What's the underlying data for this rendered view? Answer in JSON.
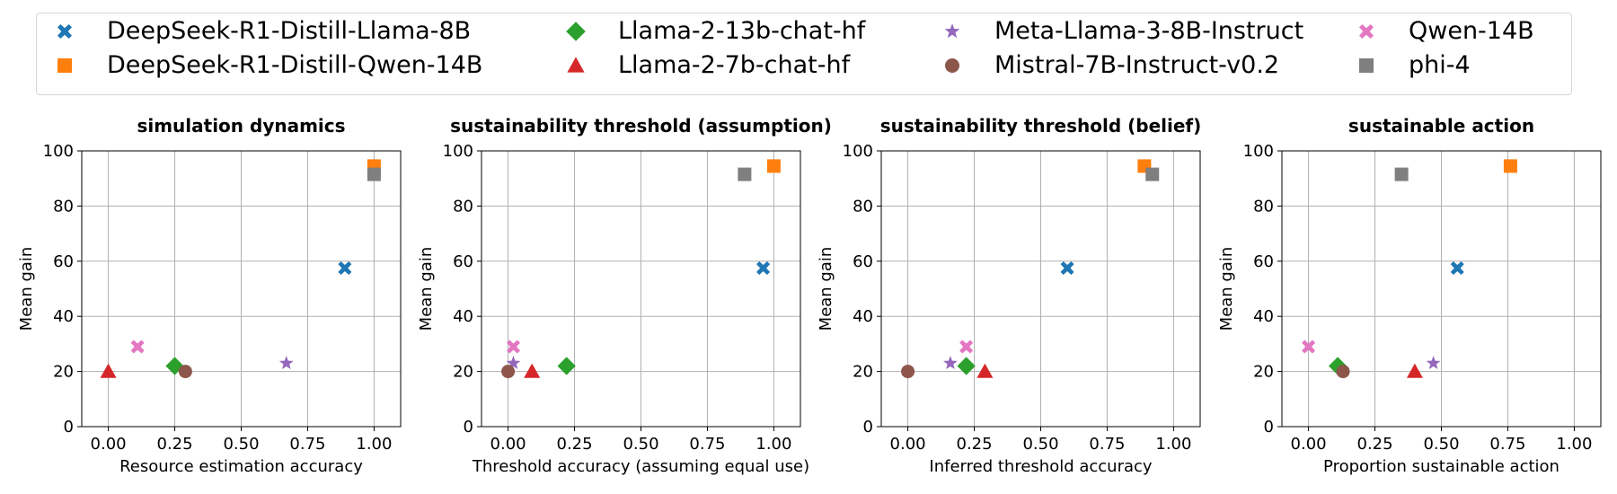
{
  "legend": [
    {
      "key": "ds_llama",
      "label": "DeepSeek-R1-Distill-Llama-8B",
      "marker": "x-cross",
      "color": "#1f77b4"
    },
    {
      "key": "ds_qwen",
      "label": "DeepSeek-R1-Distill-Qwen-14B",
      "marker": "square",
      "color": "#ff7f0e"
    },
    {
      "key": "llama13",
      "label": "Llama-2-13b-chat-hf",
      "marker": "diamond",
      "color": "#2ca02c"
    },
    {
      "key": "llama7",
      "label": "Llama-2-7b-chat-hf",
      "marker": "triangle",
      "color": "#d62728"
    },
    {
      "key": "llama3",
      "label": "Meta-Llama-3-8B-Instruct",
      "marker": "star",
      "color": "#9467bd"
    },
    {
      "key": "mistral",
      "label": "Mistral-7B-Instruct-v0.2",
      "marker": "circle",
      "color": "#8c564b"
    },
    {
      "key": "qwen14",
      "label": "Qwen-14B",
      "marker": "x-cross",
      "color": "#e377c2"
    },
    {
      "key": "phi4",
      "label": "phi-4",
      "marker": "square",
      "color": "#7f7f7f"
    }
  ],
  "chart_data": [
    {
      "type": "scatter",
      "title": "simulation dynamics",
      "xlabel": "Resource estimation accuracy",
      "ylabel": "Mean gain",
      "xlim": [
        -0.1,
        1.1
      ],
      "ylim": [
        0,
        100
      ],
      "xticks": [
        "0.00",
        "0.25",
        "0.50",
        "0.75",
        "1.00"
      ],
      "yticks": [
        "0",
        "20",
        "40",
        "60",
        "80",
        "100"
      ],
      "grid": true,
      "points": [
        {
          "series": "ds_llama",
          "x": 0.89,
          "y": 57.5
        },
        {
          "series": "ds_qwen",
          "x": 1.0,
          "y": 94.5
        },
        {
          "series": "llama13",
          "x": 0.25,
          "y": 22
        },
        {
          "series": "llama7",
          "x": 0.0,
          "y": 20
        },
        {
          "series": "llama3",
          "x": 0.67,
          "y": 23
        },
        {
          "series": "mistral",
          "x": 0.29,
          "y": 20
        },
        {
          "series": "qwen14",
          "x": 0.11,
          "y": 29
        },
        {
          "series": "phi4",
          "x": 1.0,
          "y": 91.5
        }
      ]
    },
    {
      "type": "scatter",
      "title": "sustainability threshold (assumption)",
      "xlabel": "Threshold accuracy (assuming equal use)",
      "ylabel": "Mean gain",
      "xlim": [
        -0.1,
        1.1
      ],
      "ylim": [
        0,
        100
      ],
      "xticks": [
        "0.00",
        "0.25",
        "0.50",
        "0.75",
        "1.00"
      ],
      "yticks": [
        "0",
        "20",
        "40",
        "60",
        "80",
        "100"
      ],
      "grid": true,
      "points": [
        {
          "series": "ds_llama",
          "x": 0.96,
          "y": 57.5
        },
        {
          "series": "ds_qwen",
          "x": 1.0,
          "y": 94.5
        },
        {
          "series": "llama13",
          "x": 0.22,
          "y": 22
        },
        {
          "series": "llama7",
          "x": 0.09,
          "y": 20
        },
        {
          "series": "llama3",
          "x": 0.02,
          "y": 23
        },
        {
          "series": "mistral",
          "x": 0.0,
          "y": 20
        },
        {
          "series": "qwen14",
          "x": 0.02,
          "y": 29
        },
        {
          "series": "phi4",
          "x": 0.89,
          "y": 91.5
        }
      ]
    },
    {
      "type": "scatter",
      "title": "sustainability threshold (belief)",
      "xlabel": "Inferred threshold accuracy",
      "ylabel": "Mean gain",
      "xlim": [
        -0.1,
        1.1
      ],
      "ylim": [
        0,
        100
      ],
      "xticks": [
        "0.00",
        "0.25",
        "0.50",
        "0.75",
        "1.00"
      ],
      "yticks": [
        "0",
        "20",
        "40",
        "60",
        "80",
        "100"
      ],
      "grid": true,
      "points": [
        {
          "series": "ds_llama",
          "x": 0.6,
          "y": 57.5
        },
        {
          "series": "ds_qwen",
          "x": 0.89,
          "y": 94.5
        },
        {
          "series": "llama13",
          "x": 0.22,
          "y": 22
        },
        {
          "series": "llama7",
          "x": 0.29,
          "y": 20
        },
        {
          "series": "llama3",
          "x": 0.16,
          "y": 23
        },
        {
          "series": "mistral",
          "x": 0.0,
          "y": 20
        },
        {
          "series": "qwen14",
          "x": 0.22,
          "y": 29
        },
        {
          "series": "phi4",
          "x": 0.92,
          "y": 91.5
        }
      ]
    },
    {
      "type": "scatter",
      "title": "sustainable action",
      "xlabel": "Proportion sustainable action",
      "ylabel": "Mean gain",
      "xlim": [
        -0.1,
        1.1
      ],
      "ylim": [
        0,
        100
      ],
      "xticks": [
        "0.00",
        "0.25",
        "0.50",
        "0.75",
        "1.00"
      ],
      "yticks": [
        "0",
        "20",
        "40",
        "60",
        "80",
        "100"
      ],
      "grid": true,
      "points": [
        {
          "series": "ds_llama",
          "x": 0.56,
          "y": 57.5
        },
        {
          "series": "ds_qwen",
          "x": 0.76,
          "y": 94.5
        },
        {
          "series": "llama13",
          "x": 0.11,
          "y": 22
        },
        {
          "series": "llama7",
          "x": 0.4,
          "y": 20
        },
        {
          "series": "llama3",
          "x": 0.47,
          "y": 23
        },
        {
          "series": "mistral",
          "x": 0.13,
          "y": 20
        },
        {
          "series": "qwen14",
          "x": 0.0,
          "y": 29
        },
        {
          "series": "phi4",
          "x": 0.35,
          "y": 91.5
        }
      ]
    }
  ]
}
